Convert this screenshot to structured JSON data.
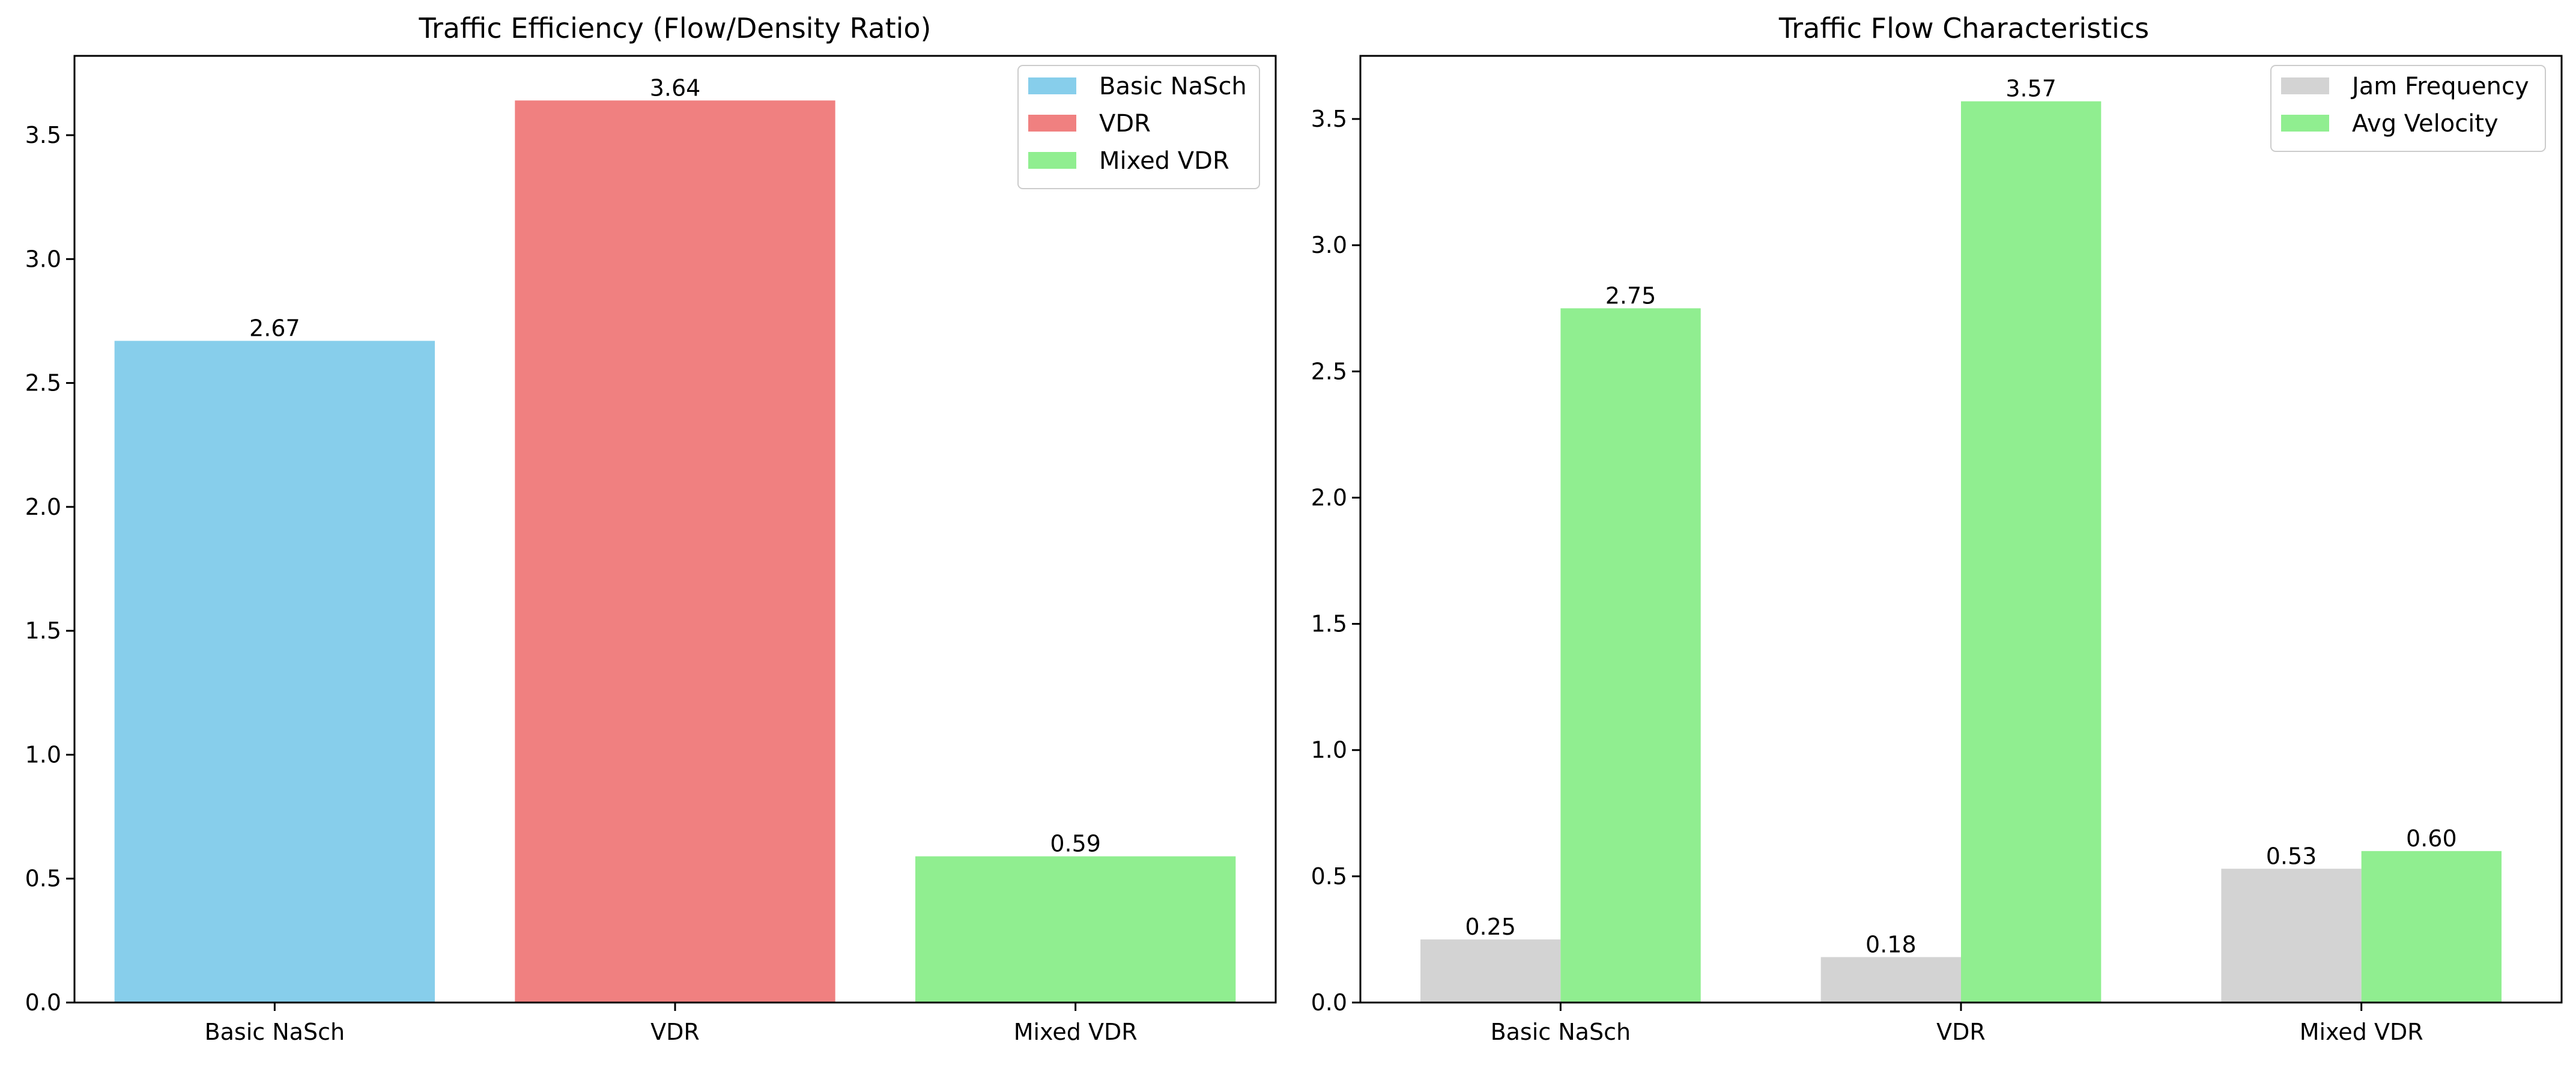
{
  "chart_data": [
    {
      "type": "bar",
      "title": "Traffic Efficiency (Flow/Density Ratio)",
      "xlabel": "",
      "ylabel": "",
      "categories": [
        "Basic NaSch",
        "VDR",
        "Mixed VDR"
      ],
      "values": [
        2.67,
        3.64,
        0.59
      ],
      "value_labels": [
        "2.67",
        "3.64",
        "0.59"
      ],
      "colors": [
        "#87CEEB",
        "#F08080",
        "#90EE90"
      ],
      "ylim": [
        0,
        3.82
      ],
      "yticks": [
        0.0,
        0.5,
        1.0,
        1.5,
        2.0,
        2.5,
        3.0,
        3.5
      ],
      "ytick_labels": [
        "0.0",
        "0.5",
        "1.0",
        "1.5",
        "2.0",
        "2.5",
        "3.0",
        "3.5"
      ],
      "grid": false,
      "legend_position": "top-right",
      "legend": [
        {
          "name": "Basic NaSch",
          "color": "#87CEEB"
        },
        {
          "name": "VDR",
          "color": "#F08080"
        },
        {
          "name": "Mixed VDR",
          "color": "#90EE90"
        }
      ]
    },
    {
      "type": "bar",
      "title": "Traffic Flow Characteristics",
      "xlabel": "",
      "ylabel": "",
      "categories": [
        "Basic NaSch",
        "VDR",
        "Mixed VDR"
      ],
      "series": [
        {
          "name": "Jam Frequency",
          "color": "#D3D3D3",
          "values": [
            0.25,
            0.18,
            0.53
          ],
          "value_labels": [
            "0.25",
            "0.18",
            "0.53"
          ]
        },
        {
          "name": "Avg Velocity",
          "color": "#90EE90",
          "values": [
            2.75,
            3.57,
            0.6
          ],
          "value_labels": [
            "2.75",
            "3.57",
            "0.60"
          ]
        }
      ],
      "ylim": [
        0,
        3.75
      ],
      "yticks": [
        0.0,
        0.5,
        1.0,
        1.5,
        2.0,
        2.5,
        3.0,
        3.5
      ],
      "ytick_labels": [
        "0.0",
        "0.5",
        "1.0",
        "1.5",
        "2.0",
        "2.5",
        "3.0",
        "3.5"
      ],
      "grid": false,
      "legend_position": "top-right"
    }
  ]
}
